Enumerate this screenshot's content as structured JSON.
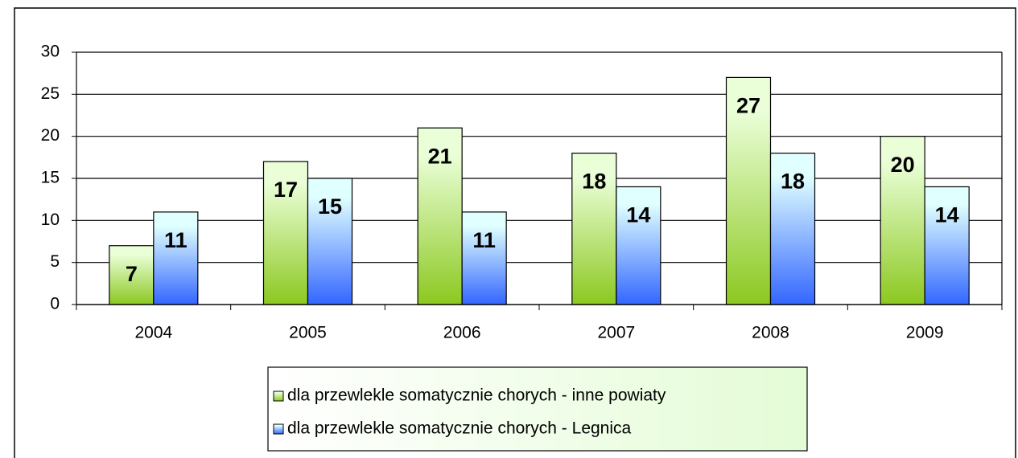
{
  "chart_data": {
    "type": "bar",
    "categories": [
      "2004",
      "2005",
      "2006",
      "2007",
      "2008",
      "2009"
    ],
    "series": [
      {
        "name": "dla przewlekle somatycznie chorych - inne powiaty",
        "color": "#8cc820",
        "values": [
          7,
          17,
          21,
          18,
          27,
          20
        ]
      },
      {
        "name": "dla przewlekle somatycznie chorych - Legnica",
        "color": "#3366ff",
        "values": [
          11,
          15,
          11,
          14,
          18,
          14
        ]
      }
    ],
    "ylim": [
      0,
      30
    ],
    "yticks": [
      0,
      5,
      10,
      15,
      20,
      25,
      30
    ],
    "grid": true,
    "legend": "bottom"
  }
}
